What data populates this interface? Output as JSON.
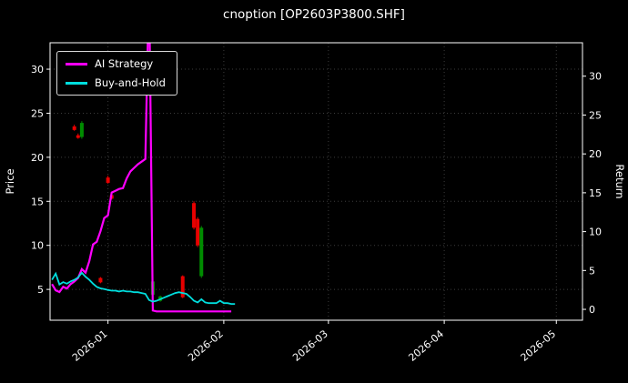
{
  "window": {
    "title": "cnoption [OP2603P3800.SHF]"
  },
  "legend": {
    "position": "upper left",
    "items": [
      {
        "label": "AI Strategy",
        "color": "#ff00ff"
      },
      {
        "label": "Buy-and-Hold",
        "color": "#00dede"
      }
    ]
  },
  "axes": {
    "left_label": "Price",
    "right_label": "Return",
    "left_ticks": [
      5,
      10,
      15,
      20,
      25,
      30
    ],
    "right_ticks": [
      0,
      5,
      10,
      15,
      20,
      25,
      30
    ],
    "x_tick_labels": [
      "2026-01",
      "2026-02",
      "2026-03",
      "2026-04",
      "2026-05"
    ]
  },
  "chart_data": {
    "type": "line",
    "title": "cnoption [OP2603P3800.SHF]",
    "x_axis": {
      "unit": "days since 2025-12-17",
      "tick_labels": [
        "2026-01",
        "2026-02",
        "2026-03",
        "2026-04",
        "2026-05"
      ],
      "tick_days": [
        15,
        46,
        74,
        105,
        135
      ],
      "xlim_days": [
        -0.5,
        142
      ]
    },
    "y_left": {
      "label": "Price",
      "ticks": [
        5,
        10,
        15,
        20,
        25,
        30
      ],
      "ylim": [
        1.5,
        33
      ]
    },
    "y_right": {
      "label": "Return",
      "ticks": [
        0,
        5,
        10,
        15,
        20,
        25,
        30
      ],
      "ylim": [
        -1.4,
        34.3
      ]
    },
    "grid": {
      "show": true,
      "style": "dotted",
      "color": "#3c3c3c"
    },
    "legend_position": "upper left",
    "series": [
      {
        "name": "AI Strategy",
        "color": "#ff00ff",
        "axis": "left",
        "width": 2.2,
        "points": [
          [
            0,
            5.6
          ],
          [
            1,
            4.9
          ],
          [
            2,
            4.7
          ],
          [
            3,
            5.3
          ],
          [
            4,
            5.1
          ],
          [
            5,
            5.6
          ],
          [
            6,
            5.9
          ],
          [
            7,
            6.3
          ],
          [
            8,
            7.3
          ],
          [
            9,
            6.9
          ],
          [
            10,
            8.2
          ],
          [
            11,
            10.1
          ],
          [
            12,
            10.4
          ],
          [
            13,
            11.6
          ],
          [
            14,
            13.1
          ],
          [
            15,
            13.4
          ],
          [
            16,
            16.0
          ],
          [
            17,
            16.2
          ],
          [
            18,
            16.4
          ],
          [
            19,
            16.5
          ],
          [
            20,
            17.6
          ],
          [
            21,
            18.4
          ],
          [
            22,
            18.8
          ],
          [
            23,
            19.2
          ],
          [
            24,
            19.5
          ],
          [
            25,
            19.8
          ],
          [
            26,
            40.0
          ],
          [
            27,
            2.6
          ],
          [
            28,
            2.5
          ],
          [
            29,
            2.5
          ],
          [
            30,
            2.5
          ],
          [
            31,
            2.5
          ],
          [
            32,
            2.5
          ],
          [
            33,
            2.5
          ],
          [
            34,
            2.5
          ],
          [
            35,
            2.5
          ],
          [
            36,
            2.5
          ],
          [
            37,
            2.5
          ],
          [
            38,
            2.5
          ],
          [
            39,
            2.5
          ],
          [
            40,
            2.5
          ],
          [
            41,
            2.5
          ],
          [
            42,
            2.5
          ],
          [
            43,
            2.5
          ],
          [
            44,
            2.5
          ],
          [
            45,
            2.5
          ],
          [
            46,
            2.5
          ],
          [
            47,
            2.5
          ],
          [
            48,
            2.5
          ]
        ]
      },
      {
        "name": "Buy-and-Hold",
        "color": "#00dede",
        "axis": "right",
        "width": 1.8,
        "points": [
          [
            0,
            3.8
          ],
          [
            1,
            4.6
          ],
          [
            2,
            3.2
          ],
          [
            3,
            3.5
          ],
          [
            4,
            3.3
          ],
          [
            5,
            3.6
          ],
          [
            6,
            3.8
          ],
          [
            7,
            4.1
          ],
          [
            8,
            4.7
          ],
          [
            9,
            4.2
          ],
          [
            10,
            3.8
          ],
          [
            11,
            3.3
          ],
          [
            12,
            2.9
          ],
          [
            13,
            2.7
          ],
          [
            14,
            2.6
          ],
          [
            15,
            2.5
          ],
          [
            16,
            2.4
          ],
          [
            17,
            2.4
          ],
          [
            18,
            2.3
          ],
          [
            19,
            2.4
          ],
          [
            20,
            2.3
          ],
          [
            21,
            2.3
          ],
          [
            22,
            2.2
          ],
          [
            23,
            2.2
          ],
          [
            24,
            2.1
          ],
          [
            25,
            2.0
          ],
          [
            26,
            1.2
          ],
          [
            27,
            1.0
          ],
          [
            28,
            1.1
          ],
          [
            29,
            1.3
          ],
          [
            30,
            1.5
          ],
          [
            31,
            1.7
          ],
          [
            32,
            1.9
          ],
          [
            33,
            2.1
          ],
          [
            34,
            2.2
          ],
          [
            35,
            2.1
          ],
          [
            36,
            2.0
          ],
          [
            37,
            1.6
          ],
          [
            38,
            1.1
          ],
          [
            39,
            0.9
          ],
          [
            40,
            1.3
          ],
          [
            41,
            0.9
          ],
          [
            42,
            0.8
          ],
          [
            43,
            0.8
          ],
          [
            44,
            0.8
          ],
          [
            45,
            1.1
          ],
          [
            46,
            0.8
          ],
          [
            47,
            0.8
          ],
          [
            48,
            0.7
          ],
          [
            49,
            0.7
          ]
        ]
      }
    ],
    "candles": {
      "axis": "left",
      "up_color": "#008c00",
      "down_color": "#e80000",
      "items": [
        {
          "day": 6,
          "dir": "down",
          "open": 23.5,
          "high": 23.7,
          "low": 23.0,
          "close": 23.1
        },
        {
          "day": 7,
          "dir": "down",
          "open": 22.5,
          "high": 22.7,
          "low": 22.1,
          "close": 22.2
        },
        {
          "day": 8,
          "dir": "up",
          "open": 22.3,
          "high": 24.1,
          "low": 22.1,
          "close": 23.9
        },
        {
          "day": 13,
          "dir": "down",
          "open": 6.3,
          "high": 6.4,
          "low": 5.7,
          "close": 5.8
        },
        {
          "day": 15,
          "dir": "down",
          "open": 17.7,
          "high": 17.9,
          "low": 17.0,
          "close": 17.1
        },
        {
          "day": 16,
          "dir": "down",
          "open": 15.7,
          "high": 15.8,
          "low": 15.2,
          "close": 15.3
        },
        {
          "day": 27,
          "dir": "up",
          "open": 4.4,
          "high": 6.0,
          "low": 4.3,
          "close": 5.9
        },
        {
          "day": 29,
          "dir": "up",
          "open": 3.7,
          "high": 4.3,
          "low": 3.6,
          "close": 4.2
        },
        {
          "day": 35,
          "dir": "down",
          "open": 6.5,
          "high": 6.6,
          "low": 4.0,
          "close": 4.1
        },
        {
          "day": 38,
          "dir": "down",
          "open": 14.8,
          "high": 15.0,
          "low": 11.8,
          "close": 12.0
        },
        {
          "day": 39,
          "dir": "down",
          "open": 13.0,
          "high": 13.2,
          "low": 9.8,
          "close": 10.0
        },
        {
          "day": 40,
          "dir": "up",
          "open": 6.5,
          "high": 12.2,
          "low": 6.3,
          "close": 12.0
        }
      ]
    }
  }
}
